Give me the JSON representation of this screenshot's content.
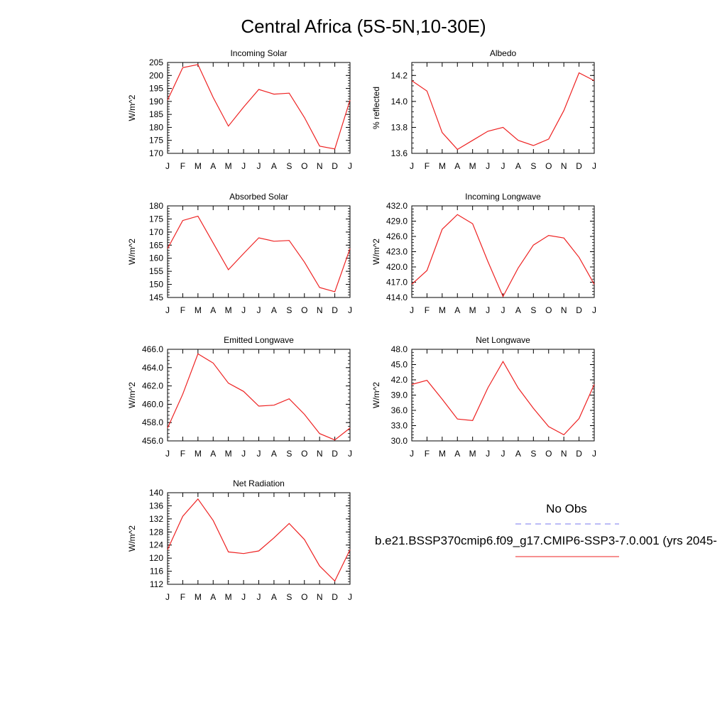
{
  "title": "Central Africa (5S-5N,10-30E)",
  "legend": {
    "obs_label": "No Obs",
    "obs_color": "#7777ee",
    "model_label": "b.e21.BSSP370cmip6.f09_g17.CMIP6-SSP3-7.0.001 (yrs 2045-",
    "model_color": "#ee2222"
  },
  "chart_data": [
    {
      "type": "line",
      "title": "Incoming Solar",
      "ylabel": "W/m^2",
      "categories": [
        "J",
        "F",
        "M",
        "A",
        "M",
        "J",
        "J",
        "A",
        "S",
        "O",
        "N",
        "D",
        "J"
      ],
      "ylim": [
        170,
        205
      ],
      "yticks": [
        "170",
        "175",
        "180",
        "185",
        "190",
        "195",
        "200",
        "205"
      ],
      "series": [
        {
          "values": [
            190.5,
            203.0,
            204.2,
            191.5,
            180.5,
            187.8,
            194.6,
            192.8,
            193.2,
            183.8,
            172.8,
            171.7,
            190.5
          ]
        }
      ]
    },
    {
      "type": "line",
      "title": "Albedo",
      "ylabel": "% reflected",
      "categories": [
        "J",
        "F",
        "M",
        "A",
        "M",
        "J",
        "J",
        "A",
        "S",
        "O",
        "N",
        "D",
        "J"
      ],
      "ylim": [
        13.6,
        14.3
      ],
      "yticks": [
        "13.6",
        "13.8",
        "14.0",
        "14.2"
      ],
      "series": [
        {
          "values": [
            14.16,
            14.08,
            13.76,
            13.63,
            13.7,
            13.77,
            13.8,
            13.7,
            13.66,
            13.71,
            13.93,
            14.22,
            14.16
          ]
        }
      ]
    },
    {
      "type": "line",
      "title": "Absorbed Solar",
      "ylabel": "W/m^2",
      "categories": [
        "J",
        "F",
        "M",
        "A",
        "M",
        "J",
        "J",
        "A",
        "S",
        "O",
        "N",
        "D",
        "J"
      ],
      "ylim": [
        145,
        180
      ],
      "yticks": [
        "145",
        "150",
        "155",
        "160",
        "165",
        "170",
        "175",
        "180"
      ],
      "series": [
        {
          "values": [
            163.7,
            174.4,
            176.1,
            165.8,
            155.6,
            161.8,
            167.8,
            166.5,
            166.8,
            158.5,
            148.8,
            147.2,
            163.7
          ]
        }
      ]
    },
    {
      "type": "line",
      "title": "Incoming Longwave",
      "ylabel": "W/m^2",
      "categories": [
        "J",
        "F",
        "M",
        "A",
        "M",
        "J",
        "J",
        "A",
        "S",
        "O",
        "N",
        "D",
        "J"
      ],
      "ylim": [
        414.0,
        432.0
      ],
      "yticks": [
        "414.0",
        "417.0",
        "420.0",
        "423.0",
        "426.0",
        "429.0",
        "432.0"
      ],
      "series": [
        {
          "values": [
            416.6,
            419.3,
            427.4,
            430.3,
            428.5,
            421.1,
            414.2,
            419.8,
            424.3,
            426.2,
            425.7,
            421.9,
            416.6
          ]
        }
      ]
    },
    {
      "type": "line",
      "title": "Emitted Longwave",
      "ylabel": "W/m^2",
      "categories": [
        "J",
        "F",
        "M",
        "A",
        "M",
        "J",
        "J",
        "A",
        "S",
        "O",
        "N",
        "D",
        "J"
      ],
      "ylim": [
        456.0,
        466.0
      ],
      "yticks": [
        "456.0",
        "458.0",
        "460.0",
        "462.0",
        "464.0",
        "466.0"
      ],
      "series": [
        {
          "values": [
            457.4,
            461.1,
            465.5,
            464.5,
            462.3,
            461.4,
            459.8,
            459.9,
            460.6,
            458.9,
            456.8,
            456.1,
            457.4
          ]
        }
      ]
    },
    {
      "type": "line",
      "title": "Net Longwave",
      "ylabel": "W/m^2",
      "categories": [
        "J",
        "F",
        "M",
        "A",
        "M",
        "J",
        "J",
        "A",
        "S",
        "O",
        "N",
        "D",
        "J"
      ],
      "ylim": [
        30.0,
        48.0
      ],
      "yticks": [
        "30.0",
        "33.0",
        "36.0",
        "39.0",
        "42.0",
        "45.0",
        "48.0"
      ],
      "series": [
        {
          "values": [
            41.1,
            41.9,
            38.2,
            34.3,
            34.0,
            40.4,
            45.6,
            40.4,
            36.4,
            32.8,
            31.2,
            34.4,
            41.1
          ]
        }
      ]
    },
    {
      "type": "line",
      "title": "Net Radiation",
      "ylabel": "W/m^2",
      "categories": [
        "J",
        "F",
        "M",
        "A",
        "M",
        "J",
        "J",
        "A",
        "S",
        "O",
        "N",
        "D",
        "J"
      ],
      "ylim": [
        112,
        140
      ],
      "yticks": [
        "112",
        "116",
        "120",
        "124",
        "128",
        "132",
        "136",
        "140"
      ],
      "series": [
        {
          "values": [
            122.6,
            132.8,
            138.1,
            131.5,
            121.9,
            121.4,
            122.2,
            126.2,
            130.6,
            125.7,
            117.6,
            113.0,
            122.6
          ]
        }
      ]
    }
  ]
}
